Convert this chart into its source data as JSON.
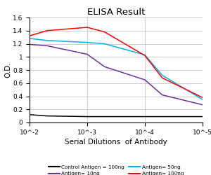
{
  "title": "ELISA Result",
  "ylabel": "O.D.",
  "xlabel": "Serial Dilutions  of Antibody",
  "ylim": [
    0,
    1.6
  ],
  "yticks": [
    0,
    0.2,
    0.4,
    0.6,
    0.8,
    1.0,
    1.2,
    1.4,
    1.6
  ],
  "ytick_labels": [
    "0",
    "0.2",
    "0.4",
    "0.6",
    "0.8",
    "1",
    "1.2",
    "1.4",
    "1.6"
  ],
  "xtick_positions": [
    0.01,
    0.001,
    0.0001,
    1e-05
  ],
  "xtick_labels": [
    "10^-2",
    "10^-3",
    "10^-4",
    "10^-5"
  ],
  "lines": [
    {
      "label": "Control Antigen = 100ng",
      "color": "#000000",
      "x": [
        0.01,
        0.005,
        0.001,
        0.0005,
        0.0001,
        5e-05,
        1e-05
      ],
      "y": [
        0.12,
        0.1,
        0.09,
        0.09,
        0.09,
        0.09,
        0.09
      ]
    },
    {
      "label": "Antigen= 10ng",
      "color": "#7030A0",
      "x": [
        0.01,
        0.005,
        0.001,
        0.0005,
        0.0001,
        5e-05,
        1e-05
      ],
      "y": [
        1.19,
        1.17,
        1.04,
        0.85,
        0.65,
        0.42,
        0.27
      ]
    },
    {
      "label": "Antigen= 50ng",
      "color": "#00B0F0",
      "x": [
        0.01,
        0.005,
        0.001,
        0.0005,
        0.0001,
        5e-05,
        1e-05
      ],
      "y": [
        1.28,
        1.25,
        1.22,
        1.2,
        1.03,
        0.72,
        0.35
      ]
    },
    {
      "label": "Antigen= 100ng",
      "color": "#FF0000",
      "x": [
        0.01,
        0.005,
        0.001,
        0.0005,
        0.0001,
        5e-05,
        1e-05
      ],
      "y": [
        1.32,
        1.4,
        1.45,
        1.38,
        1.02,
        0.68,
        0.38
      ]
    }
  ],
  "legend_order": [
    {
      "label": "Control Antigen = 100ng",
      "color": "#000000"
    },
    {
      "label": "Antigen= 10ng",
      "color": "#7030A0"
    },
    {
      "label": "Antigen= 50ng",
      "color": "#00B0F0"
    },
    {
      "label": "Antigen= 100ng",
      "color": "#FF0000"
    }
  ],
  "background_color": "#FFFFFF",
  "grid_color": "#BBBBBB"
}
